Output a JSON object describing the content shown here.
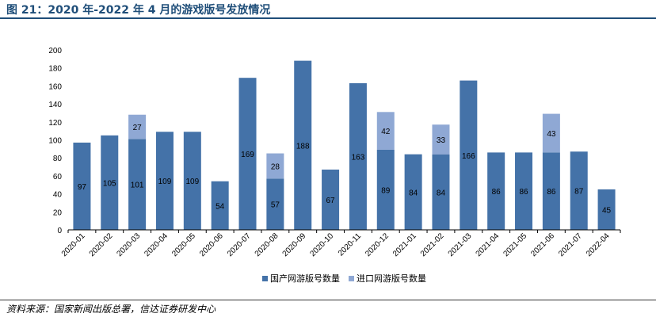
{
  "title": "图 21：2020 年-2022 年 4 月的游戏版号发放情况",
  "source": "资料来源：国家新闻出版总署，信达证券研发中心",
  "colors": {
    "domestic": "#4472a8",
    "imported": "#8fa8d4",
    "title": "#1f4e79"
  },
  "chart_data": {
    "type": "bar",
    "stacked": true,
    "categories": [
      "2020-01",
      "2020-02",
      "2020-03",
      "2020-04",
      "2020-05",
      "2020-06",
      "2020-07",
      "2020-08",
      "2020-09",
      "2020-10",
      "2020-11",
      "2020-12",
      "2021-01",
      "2021-02",
      "2021-03",
      "2021-04",
      "2021-05",
      "2021-06",
      "2021-07",
      "2022-04"
    ],
    "series": [
      {
        "name": "国产网游版号数量",
        "values": [
          97,
          105,
          101,
          109,
          109,
          54,
          169,
          57,
          188,
          67,
          163,
          89,
          84,
          84,
          166,
          86,
          86,
          86,
          87,
          45
        ]
      },
      {
        "name": "进口网游版号数量",
        "values": [
          0,
          0,
          27,
          0,
          0,
          0,
          0,
          28,
          0,
          0,
          0,
          42,
          0,
          33,
          0,
          0,
          0,
          43,
          0,
          0
        ]
      }
    ],
    "ylim": [
      0,
      200
    ],
    "yticks": [
      0,
      20,
      40,
      60,
      80,
      100,
      120,
      140,
      160,
      180,
      200
    ],
    "grid": false,
    "legend": "bottom-center"
  }
}
